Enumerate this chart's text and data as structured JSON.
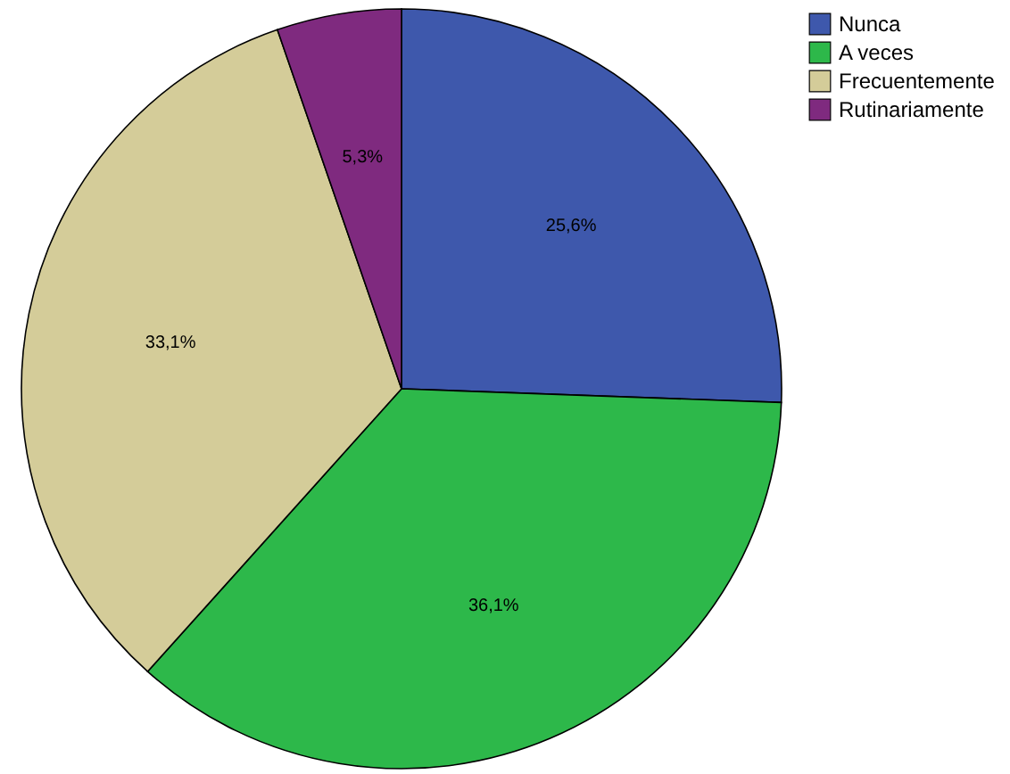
{
  "chart_data": {
    "type": "pie",
    "categories": [
      "Nunca",
      "A veces",
      "Frecuentemente",
      "Rutinariamente"
    ],
    "values": [
      25.6,
      36.1,
      33.1,
      5.3
    ],
    "colors": [
      "#3e58ac",
      "#2db84a",
      "#d4cc99",
      "#7f2a7f"
    ],
    "value_labels": [
      "25,6%",
      "36,1%",
      "33,1%",
      "5,3%"
    ],
    "legend": "top right"
  }
}
